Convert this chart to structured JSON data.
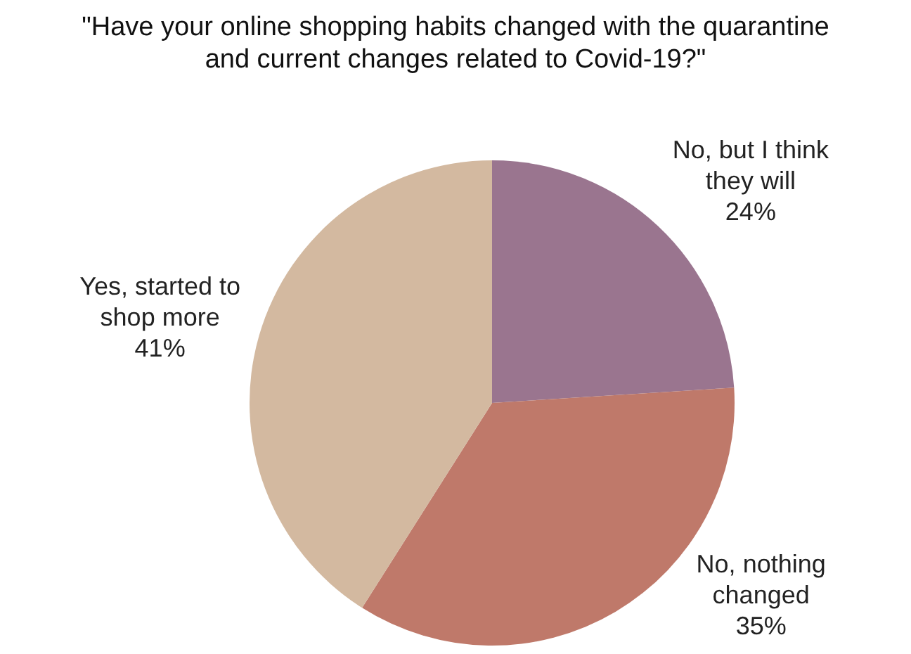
{
  "chart_data": {
    "type": "pie",
    "title": "\"Have your online shopping habits changed with the quarantine and current changes related to Covid-19?\"",
    "categories": [
      "No, but I think they will",
      "No, nothing changed",
      "Yes, started to shop more"
    ],
    "values": [
      24,
      35,
      41
    ],
    "value_labels": [
      "24%",
      "35%",
      "41%"
    ],
    "colors": [
      "#9a758f",
      "#bf796a",
      "#d3b9a0"
    ],
    "legend": false
  }
}
